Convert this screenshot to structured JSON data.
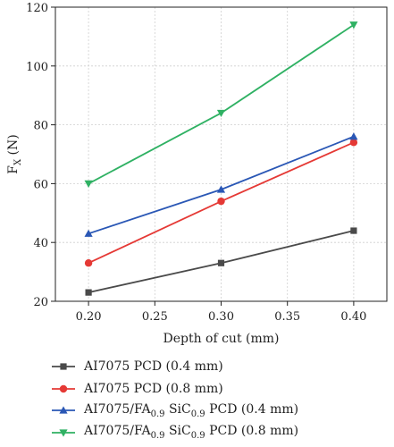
{
  "chart_data": {
    "type": "line",
    "xlabel": "Depth of cut (mm)",
    "ylabel_main": "F",
    "ylabel_sub": "X",
    "ylabel_unit": " (N)",
    "xlim": [
      0.175,
      0.425
    ],
    "ylim": [
      20,
      120
    ],
    "x_ticks": [
      "0.20",
      "0.25",
      "0.30",
      "0.35",
      "0.40"
    ],
    "x_tick_values": [
      0.2,
      0.25,
      0.3,
      0.35,
      0.4
    ],
    "y_ticks": [
      "20",
      "40",
      "60",
      "80",
      "100",
      "120"
    ],
    "y_tick_values": [
      20,
      40,
      60,
      80,
      100,
      120
    ],
    "grid": "dashed-light",
    "legend_position": "below",
    "x": [
      0.2,
      0.3,
      0.4
    ],
    "series": [
      {
        "name": "AI7075 PCD (0.4 mm)",
        "label_pre": "AI7075 PCD (0.4 mm)",
        "marker": "square",
        "color": "#4a4a4a",
        "values": [
          23,
          33,
          44
        ]
      },
      {
        "name": "AI7075 PCD (0.8 mm)",
        "label_pre": "AI7075 PCD (0.8 mm)",
        "marker": "circle",
        "color": "#e53935",
        "values": [
          33,
          54,
          74
        ]
      },
      {
        "name": "AI7075/FA0.9 SiC0.9 PCD (0.4 mm)",
        "label_pre": "AI7075/FA",
        "sub1": "0.9",
        "label_mid": " SiC",
        "sub2": "0.9",
        "label_post": " PCD (0.4 mm)",
        "marker": "triangle-up",
        "color": "#2a57b5",
        "values": [
          43,
          58,
          76
        ]
      },
      {
        "name": "AI7075/FA0.9 SiC0.9 PCD (0.8 mm)",
        "label_pre": "AI7075/FA",
        "sub1": "0.9",
        "label_mid": " SiC",
        "sub2": "0.9",
        "label_post": " PCD (0.8 mm)",
        "marker": "triangle-down",
        "color": "#2fb163",
        "values": [
          60,
          84,
          114
        ]
      }
    ]
  }
}
